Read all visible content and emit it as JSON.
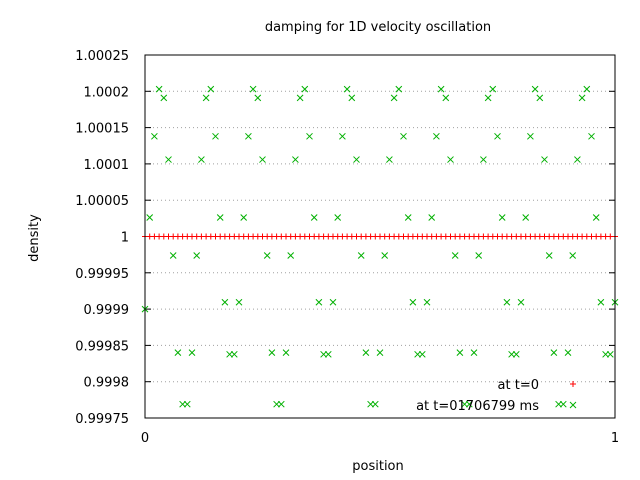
{
  "chart_data": {
    "type": "scatter",
    "title": "damping for 1D velocity oscillation",
    "xlabel": "position",
    "ylabel": "density",
    "xlim": [
      0,
      1
    ],
    "ylim": [
      0.99975,
      1.00025
    ],
    "xticks": [
      0,
      1
    ],
    "xtick_labels": [
      "0",
      "1"
    ],
    "yticks": [
      0.99975,
      0.9998,
      0.99985,
      0.9999,
      0.99995,
      1,
      1.00005,
      1.0001,
      1.00015,
      1.0002,
      1.00025
    ],
    "ytick_labels": [
      "0.99975",
      "0.9998",
      "0.99985",
      "0.9999",
      "0.99995",
      "1",
      "1.00005",
      "1.0001",
      "1.00015",
      "1.0002",
      "1.00025"
    ],
    "grid": "horizontal dotted",
    "legend_position": "bottom-right",
    "series": [
      {
        "name": "at t=0",
        "marker": "plus",
        "color": "#ff0000",
        "x": [
          0,
          0.01,
          0.02,
          0.03,
          0.04,
          0.05,
          0.06,
          0.07,
          0.08,
          0.09,
          0.1,
          0.11,
          0.12,
          0.13,
          0.14,
          0.15,
          0.16,
          0.17,
          0.18,
          0.19,
          0.2,
          0.21,
          0.22,
          0.23,
          0.24,
          0.25,
          0.26,
          0.27,
          0.28,
          0.29,
          0.3,
          0.31,
          0.32,
          0.33,
          0.34,
          0.35,
          0.36,
          0.37,
          0.38,
          0.39,
          0.4,
          0.41,
          0.42,
          0.43,
          0.44,
          0.45,
          0.46,
          0.47,
          0.48,
          0.49,
          0.5,
          0.51,
          0.52,
          0.53,
          0.54,
          0.55,
          0.56,
          0.57,
          0.58,
          0.59,
          0.6,
          0.61,
          0.62,
          0.63,
          0.64,
          0.65,
          0.66,
          0.67,
          0.68,
          0.69,
          0.7,
          0.71,
          0.72,
          0.73,
          0.74,
          0.75,
          0.76,
          0.77,
          0.78,
          0.79,
          0.8,
          0.81,
          0.82,
          0.83,
          0.84,
          0.85,
          0.86,
          0.87,
          0.88,
          0.89,
          0.9,
          0.91,
          0.92,
          0.93,
          0.94,
          0.95,
          0.96,
          0.97,
          0.98,
          0.99,
          1.0
        ],
        "y": [
          1,
          1,
          1,
          1,
          1,
          1,
          1,
          1,
          1,
          1,
          1,
          1,
          1,
          1,
          1,
          1,
          1,
          1,
          1,
          1,
          1,
          1,
          1,
          1,
          1,
          1,
          1,
          1,
          1,
          1,
          1,
          1,
          1,
          1,
          1,
          1,
          1,
          1,
          1,
          1,
          1,
          1,
          1,
          1,
          1,
          1,
          1,
          1,
          1,
          1,
          1,
          1,
          1,
          1,
          1,
          1,
          1,
          1,
          1,
          1,
          1,
          1,
          1,
          1,
          1,
          1,
          1,
          1,
          1,
          1,
          1,
          1,
          1,
          1,
          1,
          1,
          1,
          1,
          1,
          1,
          1,
          1,
          1,
          1,
          1,
          1,
          1,
          1,
          1,
          1,
          1,
          1,
          1,
          1,
          1,
          1,
          1,
          1,
          1,
          1,
          1
        ]
      },
      {
        "name": "at t=01706799 ms",
        "marker": "cross",
        "color": "#00b000",
        "x": [
          0.0,
          0.01,
          0.02,
          0.03,
          0.04,
          0.05,
          0.06,
          0.07,
          0.08,
          0.09,
          0.1,
          0.11,
          0.12,
          0.13,
          0.14,
          0.15,
          0.16,
          0.17,
          0.18,
          0.19,
          0.2,
          0.21,
          0.22,
          0.23,
          0.24,
          0.25,
          0.26,
          0.27,
          0.28,
          0.29,
          0.3,
          0.31,
          0.32,
          0.33,
          0.34,
          0.35,
          0.36,
          0.37,
          0.38,
          0.39,
          0.4,
          0.41,
          0.42,
          0.43,
          0.44,
          0.45,
          0.46,
          0.47,
          0.48,
          0.49,
          0.5,
          0.51,
          0.52,
          0.53,
          0.54,
          0.55,
          0.56,
          0.57,
          0.58,
          0.59,
          0.6,
          0.61,
          0.62,
          0.63,
          0.64,
          0.65,
          0.66,
          0.67,
          0.68,
          0.69,
          0.7,
          0.71,
          0.72,
          0.73,
          0.74,
          0.75,
          0.76,
          0.77,
          0.78,
          0.79,
          0.8,
          0.81,
          0.82,
          0.83,
          0.84,
          0.85,
          0.86,
          0.87,
          0.88,
          0.89,
          0.9,
          0.91,
          0.92,
          0.93,
          0.94,
          0.95,
          0.96,
          0.97,
          0.98,
          0.99,
          1.0
        ],
        "y": [
          0.9999,
          1.0000262,
          1.000138,
          1.000203,
          1.000191,
          1.000106,
          0.9999738,
          0.99984,
          0.999769,
          0.999769,
          0.99984,
          0.9999738,
          1.000106,
          1.000191,
          1.000203,
          1.000138,
          1.0000262,
          0.9999094,
          0.9998377,
          0.9998377,
          0.9999094,
          1.0000262,
          1.000138,
          1.000203,
          1.000191,
          1.000106,
          0.9999738,
          0.99984,
          0.999769,
          0.999769,
          0.99984,
          0.9999738,
          1.000106,
          1.000191,
          1.000203,
          1.000138,
          1.0000262,
          0.9999094,
          0.9998377,
          0.9998377,
          0.9999094,
          1.0000262,
          1.000138,
          1.000203,
          1.000191,
          1.000106,
          0.9999738,
          0.99984,
          0.999769,
          0.999769,
          0.99984,
          0.9999738,
          1.000106,
          1.000191,
          1.000203,
          1.000138,
          1.0000262,
          0.9999094,
          0.9998377,
          0.9998377,
          0.9999094,
          1.0000262,
          1.000138,
          1.000203,
          1.000191,
          1.000106,
          0.9999738,
          0.99984,
          0.999769,
          0.999769,
          0.99984,
          0.9999738,
          1.000106,
          1.000191,
          1.000203,
          1.000138,
          1.0000262,
          0.9999094,
          0.9998377,
          0.9998377,
          0.9999094,
          1.0000262,
          1.000138,
          1.000203,
          1.000191,
          1.000106,
          0.9999738,
          0.99984,
          0.999769,
          0.999769,
          0.99984,
          0.9999738,
          1.000106,
          1.000191,
          1.000203,
          1.000138,
          1.0000262,
          0.9999094,
          0.9998377,
          0.9998377,
          0.9999094
        ]
      }
    ]
  }
}
